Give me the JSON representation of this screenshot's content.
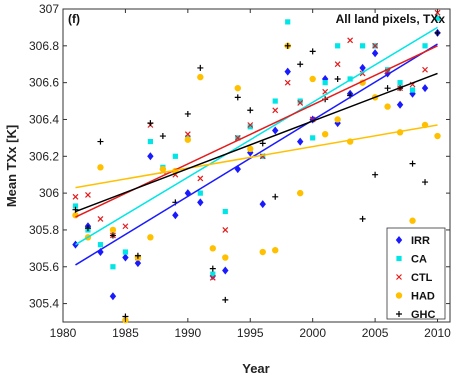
{
  "chart_data": {
    "type": "scatter",
    "panel_label": "(f)",
    "title": "All land pixels, TXx",
    "xlabel": "Year",
    "ylabel": "Mean TXx [K]",
    "xlim": [
      1980,
      2011
    ],
    "ylim": [
      305.3,
      307
    ],
    "xticks": [
      1980,
      1985,
      1990,
      1995,
      2000,
      2005,
      2010
    ],
    "yticks": [
      305.4,
      305.6,
      305.8,
      306,
      306.2,
      306.4,
      306.6,
      306.8,
      307
    ],
    "grid": false,
    "legend_position": "bottom-right",
    "years": [
      1981,
      1982,
      1983,
      1984,
      1985,
      1986,
      1987,
      1988,
      1989,
      1990,
      1991,
      1992,
      1993,
      1994,
      1995,
      1996,
      1997,
      1998,
      1999,
      2000,
      2001,
      2002,
      2003,
      2004,
      2005,
      2006,
      2007,
      2008,
      2009,
      2010
    ],
    "series": [
      {
        "name": "IRR",
        "color": "#1a1aff",
        "marker": "diamond",
        "values": [
          305.72,
          305.82,
          305.68,
          305.44,
          305.65,
          305.62,
          306.2,
          306.13,
          305.88,
          306.0,
          305.95,
          305.55,
          305.58,
          306.13,
          306.22,
          305.94,
          306.34,
          306.66,
          306.28,
          306.4,
          306.62,
          306.38,
          306.54,
          306.68,
          306.76,
          306.65,
          306.48,
          306.54,
          306.57,
          306.87
        ],
        "trend": [
          305.61,
          306.81
        ]
      },
      {
        "name": "CA",
        "color": "#00e5e5",
        "marker": "square",
        "values": [
          305.93,
          305.8,
          305.72,
          305.6,
          305.68,
          305.65,
          306.28,
          306.14,
          306.2,
          306.3,
          306.0,
          305.56,
          305.9,
          306.3,
          306.36,
          306.2,
          306.5,
          306.93,
          306.5,
          306.3,
          306.6,
          306.8,
          306.62,
          306.8,
          306.8,
          306.67,
          306.6,
          306.56,
          306.8,
          306.95
        ],
        "trend": [
          305.72,
          306.9
        ]
      },
      {
        "name": "CTL",
        "color": "#e51a1a",
        "marker": "x",
        "values": [
          305.98,
          305.99,
          305.86,
          305.77,
          305.82,
          305.65,
          306.37,
          306.12,
          306.1,
          306.32,
          306.08,
          305.54,
          305.8,
          306.3,
          306.37,
          306.2,
          306.45,
          306.6,
          306.49,
          306.4,
          306.55,
          306.7,
          306.83,
          306.65,
          306.8,
          306.66,
          306.57,
          306.59,
          306.67,
          306.98
        ],
        "trend": [
          305.87,
          306.8
        ]
      },
      {
        "name": "HAD",
        "color": "#ffc000",
        "marker": "circle",
        "values": [
          305.88,
          305.76,
          306.14,
          305.8,
          305.31,
          305.65,
          305.76,
          306.13,
          306.12,
          306.29,
          306.63,
          305.7,
          305.65,
          306.57,
          306.24,
          305.68,
          305.69,
          306.8,
          306.0,
          306.62,
          306.32,
          306.4,
          306.28,
          306.6,
          306.52,
          306.47,
          306.33,
          305.85,
          306.37,
          306.31
        ],
        "trend": [
          306.03,
          306.37
        ]
      },
      {
        "name": "GHC",
        "color": "#000000",
        "marker": "plus",
        "values": [
          305.91,
          305.81,
          306.28,
          305.77,
          305.33,
          305.66,
          306.38,
          306.31,
          305.95,
          306.43,
          306.68,
          305.59,
          305.42,
          306.52,
          306.45,
          306.27,
          305.98,
          306.8,
          306.7,
          306.77,
          306.51,
          306.62,
          306.53,
          305.86,
          306.1,
          306.57,
          306.57,
          306.16,
          306.06,
          306.87
        ],
        "trend": [
          305.9,
          306.65
        ]
      }
    ]
  }
}
